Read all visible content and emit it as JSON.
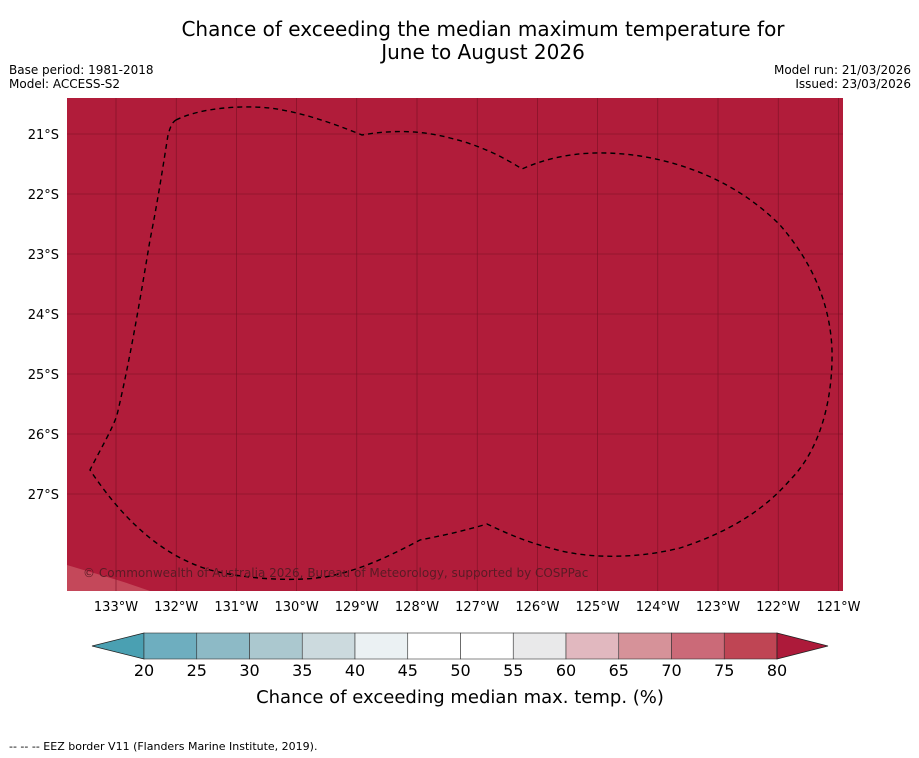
{
  "title": {
    "line1": "Chance of exceeding the median maximum temperature for",
    "line2": "June to August 2026"
  },
  "meta": {
    "base_period": "Base period: 1981-2018",
    "model": "Model: ACCESS-S2",
    "model_run": "Model run: 21/03/2026",
    "issued": "Issued: 23/03/2026"
  },
  "map": {
    "fill_color": "#b11c3a",
    "grid_color": "#7a1024",
    "lat_labels": [
      "21°S",
      "22°S",
      "23°S",
      "24°S",
      "25°S",
      "26°S",
      "27°S"
    ],
    "lon_labels": [
      "133°W",
      "132°W",
      "131°W",
      "130°W",
      "129°W",
      "128°W",
      "127°W",
      "126°W",
      "125°W",
      "124°W",
      "123°W",
      "122°W",
      "121°W"
    ],
    "copyright": "© Commonwealth of Australia 2026, Bureau of Meteorology, supported by COSPPac"
  },
  "colorbar": {
    "ticks": [
      "20",
      "25",
      "30",
      "35",
      "40",
      "45",
      "50",
      "55",
      "60",
      "65",
      "70",
      "75",
      "80"
    ],
    "colors": [
      "#6eaebf",
      "#8dbac6",
      "#abc8cf",
      "#ccdade",
      "#ebf1f3",
      "#ffffff",
      "#ffffff",
      "#e9e9ea",
      "#e1b8bf",
      "#d69299",
      "#cb6a78",
      "#bf4554"
    ],
    "low_color": "#4aa0b2",
    "high_color": "#ad1a3a",
    "label": "Chance of exceeding median max. temp. (%)"
  },
  "footnote": "--  --  -- EEZ border V11 (Flanders Marine Institute, 2019)."
}
